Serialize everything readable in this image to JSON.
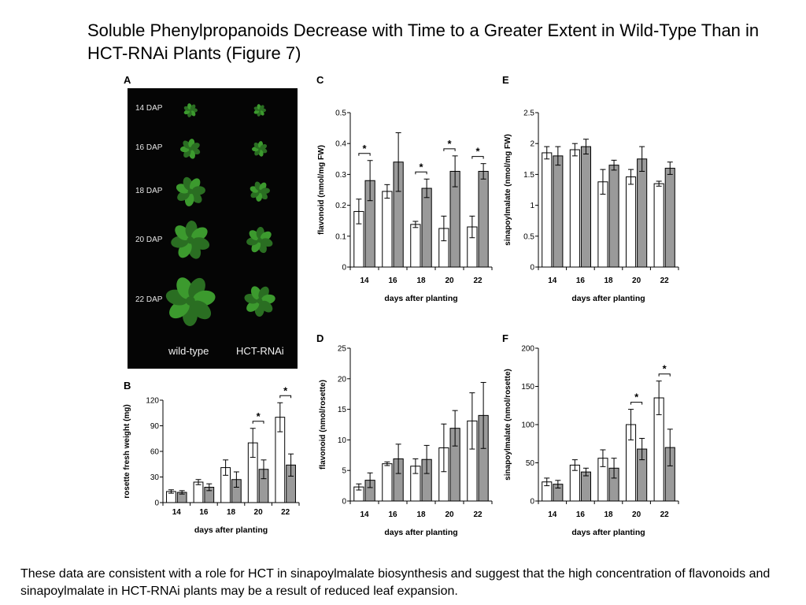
{
  "title": "Soluble Phenylpropanoids Decrease with Time to a Greater Extent in Wild-Type Than in HCT-RNAi Plants  (Figure 7)",
  "footer": "These data are consistent with a role for HCT in sinapoylmalate biosynthesis and suggest that the high concentration of flavonoids and sinapoylmalate in HCT-RNAi plants may be a result of reduced leaf expansion.",
  "panel_a": {
    "letter": "A",
    "rows": [
      "14 DAP",
      "16 DAP",
      "18 DAP",
      "20 DAP",
      "22 DAP"
    ],
    "wild_type_label": "wild-type",
    "hct_label": "HCT-RNAi",
    "colors": {
      "background": "#050505",
      "leaf": "#3c9a2e",
      "leaf_dark": "#2a6e22"
    }
  },
  "colors": {
    "wild_type": "#ffffff",
    "hct_rnai": "#9a9a9a",
    "outline": "#000000"
  },
  "chart_data": [
    {
      "id": "B",
      "letter": "B",
      "type": "bar",
      "categories": [
        "14",
        "16",
        "18",
        "20",
        "22"
      ],
      "xlabel": "days after planting",
      "ylabel": "rosette fresh weight (mg)",
      "ylim": [
        0,
        120
      ],
      "yticks": [
        0,
        30,
        60,
        90,
        120
      ],
      "series": [
        {
          "values": [
            13,
            24,
            41,
            70,
            100
          ],
          "errors": [
            2,
            3,
            9,
            17,
            17
          ]
        },
        {
          "values": [
            12,
            18,
            27,
            39,
            44
          ],
          "errors": [
            2,
            4,
            9,
            11,
            13
          ]
        }
      ],
      "significance": [
        3,
        4
      ],
      "sig_label": "*"
    },
    {
      "id": "C",
      "letter": "C",
      "type": "bar",
      "categories": [
        "14",
        "16",
        "18",
        "20",
        "22"
      ],
      "xlabel": "days after planting",
      "ylabel": "flavonoid (nmol/mg FW)",
      "ylim": [
        0,
        0.5
      ],
      "yticks": [
        0,
        0.1,
        0.2,
        0.3,
        0.4,
        0.5
      ],
      "series": [
        {
          "values": [
            0.18,
            0.245,
            0.138,
            0.125,
            0.13
          ],
          "errors": [
            0.04,
            0.022,
            0.01,
            0.04,
            0.035
          ]
        },
        {
          "values": [
            0.28,
            0.34,
            0.255,
            0.31,
            0.31
          ],
          "errors": [
            0.065,
            0.095,
            0.03,
            0.05,
            0.025
          ]
        }
      ],
      "significance": [
        0,
        2,
        3,
        4
      ],
      "sig_label": "*"
    },
    {
      "id": "D",
      "letter": "D",
      "type": "bar",
      "categories": [
        "14",
        "16",
        "18",
        "20",
        "22"
      ],
      "xlabel": "days after planting",
      "ylabel": "flavonoid (nmol/rosette)",
      "ylim": [
        0,
        25
      ],
      "yticks": [
        0,
        5,
        10,
        15,
        20,
        25
      ],
      "series": [
        {
          "values": [
            2.3,
            6.1,
            5.7,
            8.7,
            13.1
          ],
          "errors": [
            0.5,
            0.3,
            1.2,
            3.9,
            4.6
          ]
        },
        {
          "values": [
            3.4,
            6.9,
            6.8,
            11.9,
            14.0
          ],
          "errors": [
            1.2,
            2.4,
            2.3,
            2.9,
            5.4
          ]
        }
      ],
      "significance": [],
      "sig_label": "*"
    },
    {
      "id": "E",
      "letter": "E",
      "type": "bar",
      "categories": [
        "14",
        "16",
        "18",
        "20",
        "22"
      ],
      "xlabel": "days after planting",
      "ylabel": "sinapoylmalate (nmol/mg FW)",
      "ylim": [
        0,
        2.5
      ],
      "yticks": [
        0,
        0.5,
        1.0,
        1.5,
        2.0,
        2.5
      ],
      "series": [
        {
          "values": [
            1.85,
            1.9,
            1.38,
            1.46,
            1.35
          ],
          "errors": [
            0.1,
            0.1,
            0.2,
            0.12,
            0.04
          ]
        },
        {
          "values": [
            1.8,
            1.95,
            1.65,
            1.75,
            1.6
          ],
          "errors": [
            0.15,
            0.12,
            0.08,
            0.2,
            0.1
          ]
        }
      ],
      "significance": [],
      "sig_label": "*"
    },
    {
      "id": "F",
      "letter": "F",
      "type": "bar",
      "categories": [
        "14",
        "16",
        "18",
        "20",
        "22"
      ],
      "xlabel": "days after planting",
      "ylabel": "sinapoylmalate (nmol/rosette)",
      "ylim": [
        0,
        200
      ],
      "yticks": [
        0,
        50,
        100,
        150,
        200
      ],
      "series": [
        {
          "values": [
            25,
            47,
            56,
            100,
            135
          ],
          "errors": [
            5,
            7,
            11,
            20,
            22
          ]
        },
        {
          "values": [
            22,
            38,
            43,
            68,
            70
          ],
          "errors": [
            5,
            5,
            13,
            14,
            24
          ]
        }
      ],
      "significance": [
        3,
        4
      ],
      "sig_label": "*"
    }
  ]
}
